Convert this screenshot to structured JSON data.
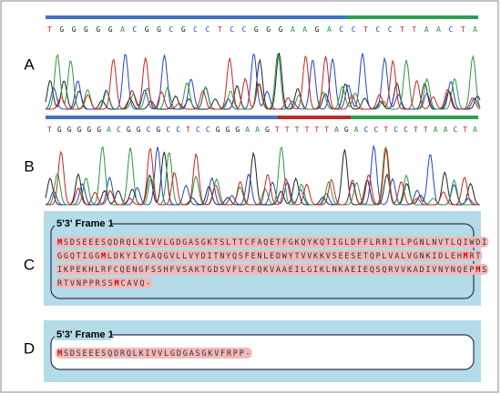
{
  "panels": [
    {
      "label": "A",
      "sequence": "T G G G G G A C G G C G C C T C C G G G A A G A C C T C C T T A A C T A"
    },
    {
      "label": "B",
      "sequence": "T G G G G G A C G G C G C C T C C G G G A A G T T T T T T A G A C C T C C T T A A C T A"
    },
    {
      "label": "C",
      "frame": "5'3' Frame 1",
      "lines": [
        "MSDSEEESQDRQLKIVVLGDGASGKTSLTTCFAQETFGKQYKQTIGLDFFLRRITLPGNLNVTLQIWDI",
        "GGQTIGGMLDKYIYGAQGVLLVYDITNYQSFENLEDWYTVVKKVSEESETQPLVALVGNKIDLEHMRT",
        "IKPEKHLRFCQENGFSSHFVSAKTGDSVFLCFQKVAAEILGIKLNKAEIEQSQRVVKADIVNYNQEPMS",
        "RTVNPPRSSMCAVQ-"
      ]
    },
    {
      "label": "D",
      "frame": "5'3' Frame 1",
      "lines": [
        "MSDSEEESQDRQLKIVVLGDGASGKVFRPP-"
      ]
    }
  ]
}
